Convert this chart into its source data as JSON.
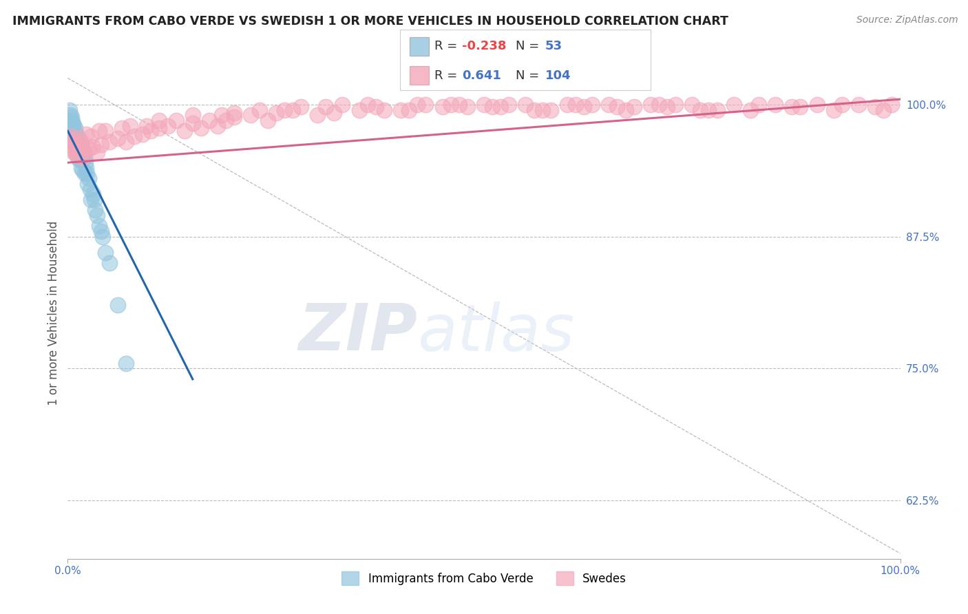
{
  "title": "IMMIGRANTS FROM CABO VERDE VS SWEDISH 1 OR MORE VEHICLES IN HOUSEHOLD CORRELATION CHART",
  "source": "Source: ZipAtlas.com",
  "ylabel": "1 or more Vehicles in Household",
  "yticks": [
    62.5,
    75.0,
    87.5,
    100.0
  ],
  "ytick_labels": [
    "62.5%",
    "75.0%",
    "87.5%",
    "100.0%"
  ],
  "xmin": 0.0,
  "xmax": 100.0,
  "ymin": 57.0,
  "ymax": 103.5,
  "blue_R": -0.238,
  "blue_N": 53,
  "pink_R": 0.641,
  "pink_N": 104,
  "blue_color": "#92c5de",
  "pink_color": "#f4a7b9",
  "blue_line_color": "#2166ac",
  "pink_line_color": "#d6618a",
  "legend_label_blue": "Immigrants from Cabo Verde",
  "legend_label_pink": "Swedes",
  "watermark_zip": "ZIP",
  "watermark_atlas": "atlas",
  "blue_scatter_x": [
    0.3,
    0.4,
    0.5,
    0.6,
    0.7,
    0.8,
    0.9,
    1.0,
    1.0,
    1.1,
    1.2,
    1.3,
    1.4,
    1.5,
    1.6,
    1.7,
    1.8,
    1.9,
    2.0,
    2.1,
    2.2,
    2.3,
    2.5,
    2.7,
    3.0,
    3.2,
    3.5,
    3.8,
    4.0,
    4.2,
    4.5,
    5.0,
    6.0,
    0.2,
    0.4,
    0.6,
    0.8,
    1.0,
    1.2,
    1.4,
    1.6,
    1.8,
    2.0,
    2.4,
    2.8,
    3.3,
    0.5,
    0.7,
    0.9,
    1.1,
    1.3,
    1.5,
    7.0
  ],
  "blue_scatter_y": [
    99.0,
    98.5,
    98.8,
    98.2,
    98.0,
    97.5,
    97.8,
    97.2,
    96.8,
    97.0,
    96.5,
    96.8,
    96.0,
    96.3,
    95.8,
    96.0,
    95.5,
    95.2,
    95.0,
    94.5,
    94.0,
    93.5,
    93.0,
    92.0,
    91.5,
    91.0,
    89.5,
    88.5,
    88.0,
    87.5,
    86.0,
    85.0,
    81.0,
    99.5,
    98.0,
    97.5,
    96.5,
    95.5,
    95.0,
    94.8,
    94.0,
    93.8,
    93.5,
    92.5,
    91.0,
    90.0,
    98.5,
    97.0,
    96.5,
    96.2,
    95.5,
    95.0,
    75.5
  ],
  "pink_scatter_x": [
    0.3,
    0.5,
    0.7,
    1.0,
    1.2,
    1.5,
    1.8,
    2.0,
    2.5,
    3.0,
    3.5,
    4.0,
    5.0,
    6.0,
    7.0,
    8.0,
    9.0,
    10.0,
    11.0,
    12.0,
    14.0,
    15.0,
    16.0,
    17.0,
    18.0,
    19.0,
    20.0,
    22.0,
    24.0,
    25.0,
    27.0,
    30.0,
    32.0,
    35.0,
    37.0,
    40.0,
    42.0,
    45.0,
    47.0,
    50.0,
    52.0,
    55.0,
    57.0,
    60.0,
    62.0,
    65.0,
    67.0,
    70.0,
    72.0,
    75.0,
    77.0,
    80.0,
    82.0,
    85.0,
    87.0,
    90.0,
    92.0,
    95.0,
    97.0,
    99.0,
    0.4,
    0.8,
    1.3,
    2.2,
    3.8,
    6.5,
    9.5,
    13.0,
    18.5,
    23.0,
    28.0,
    33.0,
    38.0,
    43.0,
    48.0,
    53.0,
    58.0,
    63.0,
    68.0,
    73.0,
    78.0,
    83.0,
    88.0,
    93.0,
    98.0,
    0.6,
    1.6,
    2.8,
    4.5,
    7.5,
    11.0,
    15.0,
    20.0,
    26.0,
    31.0,
    36.0,
    41.0,
    46.0,
    51.0,
    56.0,
    61.0,
    66.0,
    71.0,
    76.0
  ],
  "pink_scatter_y": [
    96.5,
    95.8,
    95.5,
    95.2,
    95.5,
    95.8,
    95.0,
    95.5,
    95.8,
    96.0,
    95.5,
    96.2,
    96.5,
    96.8,
    96.5,
    97.0,
    97.2,
    97.5,
    97.8,
    98.0,
    97.5,
    98.2,
    97.8,
    98.5,
    98.0,
    98.5,
    98.8,
    99.0,
    98.5,
    99.2,
    99.5,
    99.0,
    99.2,
    99.5,
    99.8,
    99.5,
    100.0,
    99.8,
    100.0,
    100.0,
    99.8,
    100.0,
    99.5,
    100.0,
    99.8,
    100.0,
    99.5,
    100.0,
    99.8,
    100.0,
    99.5,
    100.0,
    99.5,
    100.0,
    99.8,
    100.0,
    99.5,
    100.0,
    99.8,
    100.0,
    97.0,
    96.8,
    96.5,
    97.2,
    97.5,
    97.8,
    98.0,
    98.5,
    99.0,
    99.5,
    99.8,
    100.0,
    99.5,
    100.0,
    99.8,
    100.0,
    99.5,
    100.0,
    99.8,
    100.0,
    99.5,
    100.0,
    99.8,
    100.0,
    99.5,
    96.0,
    96.5,
    97.0,
    97.5,
    98.0,
    98.5,
    99.0,
    99.2,
    99.5,
    99.8,
    100.0,
    99.5,
    100.0,
    99.8,
    99.5,
    100.0,
    99.8,
    100.0,
    99.5
  ],
  "blue_trend_x0": 0.0,
  "blue_trend_y0": 97.5,
  "blue_trend_x1": 15.0,
  "blue_trend_y1": 74.0,
  "pink_trend_x0": 0.0,
  "pink_trend_y0": 94.5,
  "pink_trend_x1": 100.0,
  "pink_trend_y1": 100.5
}
